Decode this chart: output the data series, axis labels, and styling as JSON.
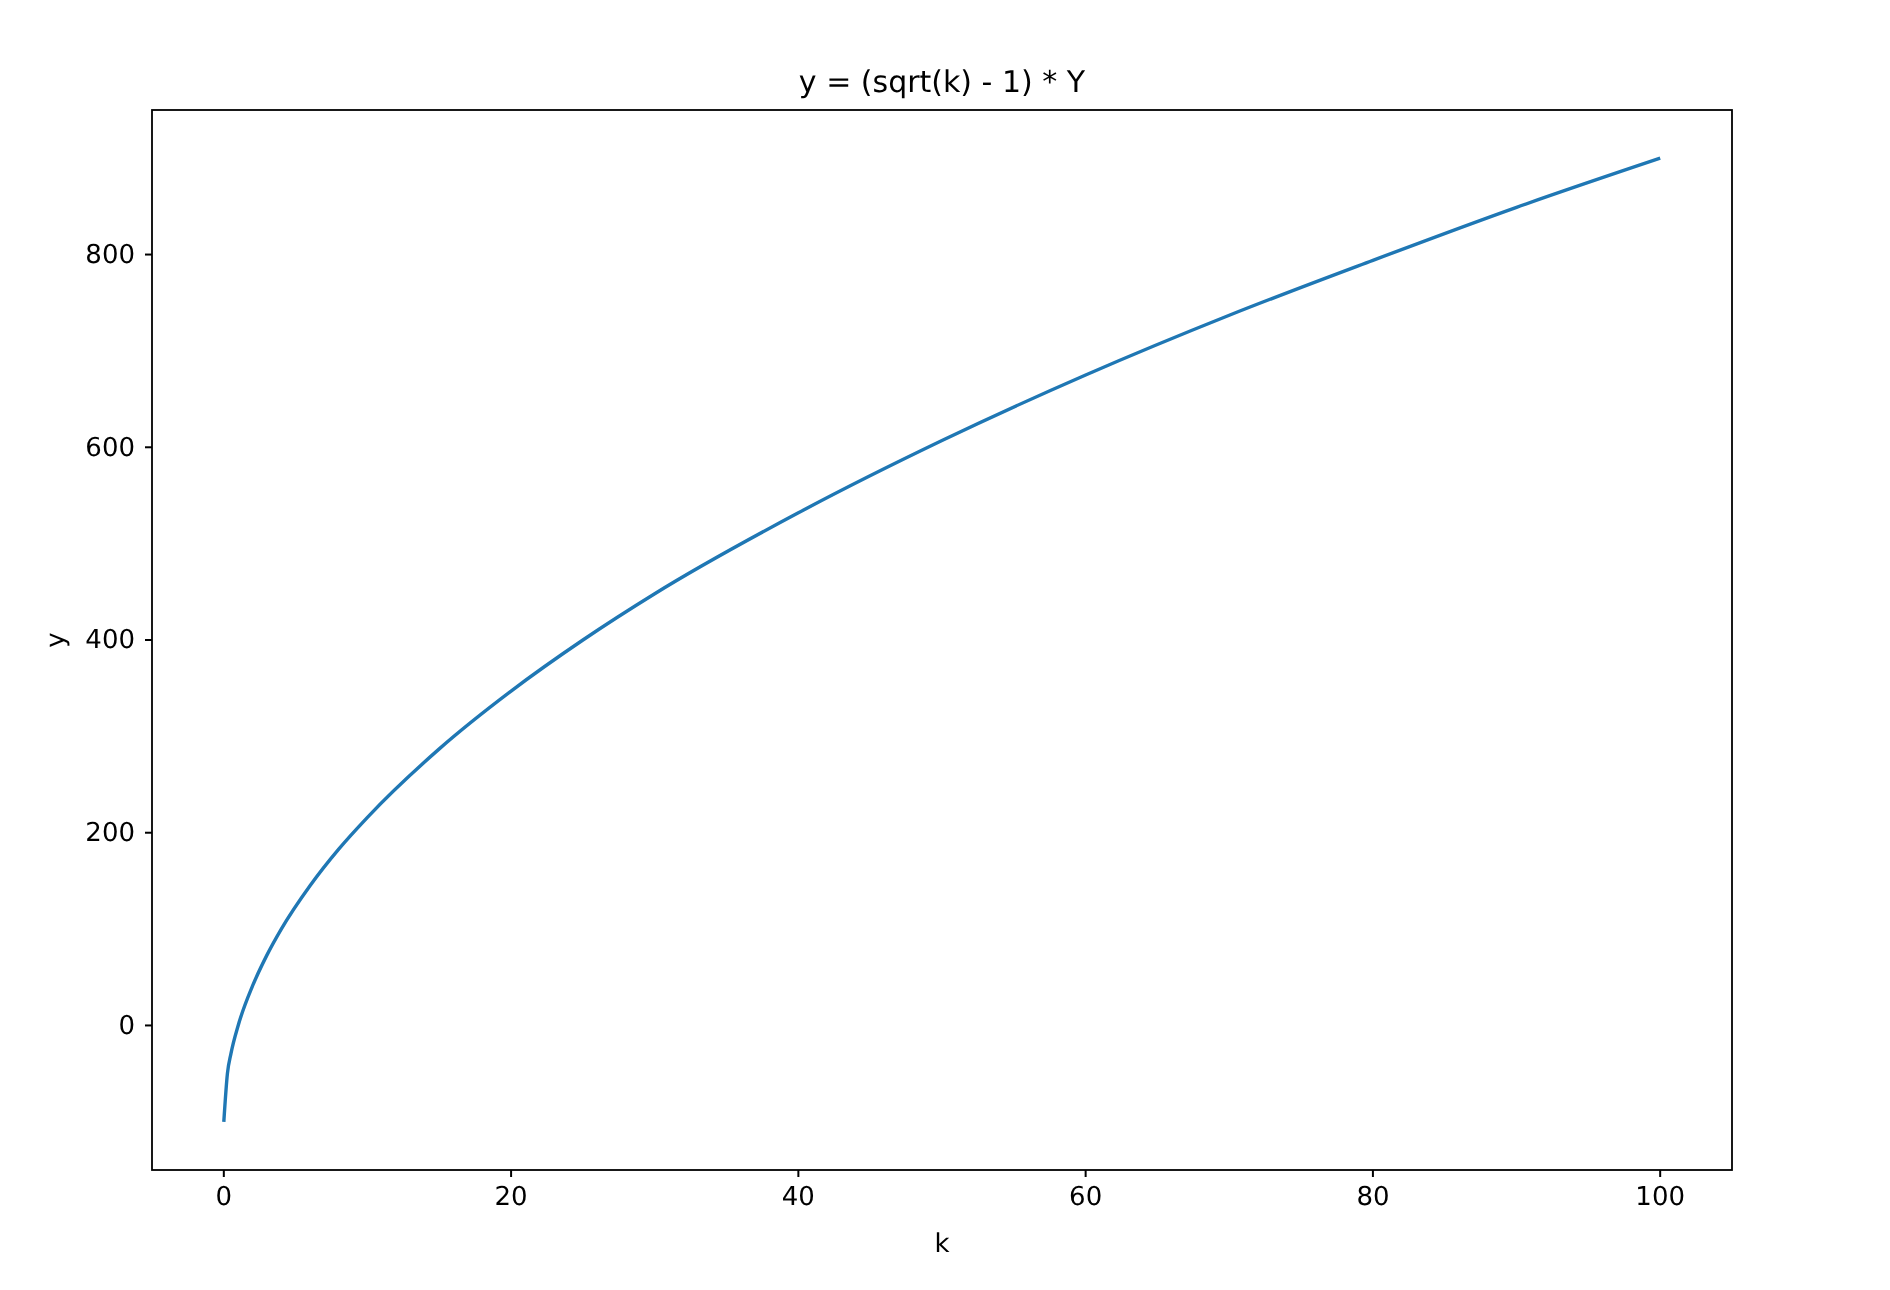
{
  "chart_data": {
    "type": "line",
    "title": "y = (sqrt(k) - 1) * Y",
    "xlabel": "k",
    "ylabel": "y",
    "x": [
      0,
      0.25,
      0.5,
      1,
      2,
      3,
      4,
      6,
      8,
      10,
      15,
      20,
      25,
      30,
      40,
      50,
      60,
      70,
      80,
      90,
      100
    ],
    "series": [
      {
        "color": "#1f77b4",
        "values": [
          -100,
          -50,
          -29,
          0,
          41,
          73,
          100,
          145,
          183,
          216,
          287,
          347,
          400,
          448,
          532,
          607,
          675,
          737,
          794,
          849,
          900
        ]
      }
    ],
    "xlim": [
      -5,
      105
    ],
    "ylim": [
      -150,
      950
    ],
    "xticks": [
      0,
      20,
      40,
      60,
      80,
      100
    ],
    "yticks": [
      0,
      200,
      400,
      600,
      800
    ],
    "grid": false,
    "marker": "none",
    "line_style": "solid"
  }
}
